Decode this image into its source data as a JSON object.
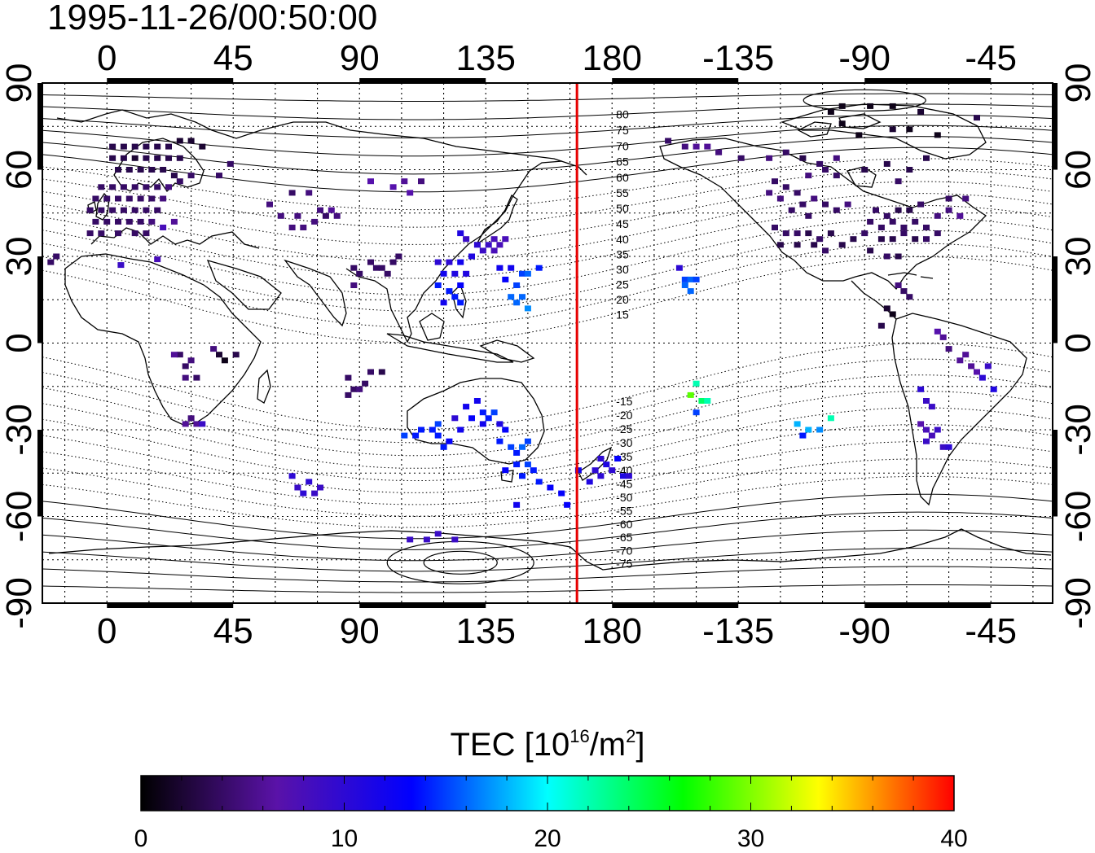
{
  "timestamp": "1995-11-26/00:50:00",
  "map": {
    "lon_ticks_top": [
      "0",
      "45",
      "90",
      "135",
      "180",
      "-135",
      "-90",
      "-45"
    ],
    "lon_ticks_bottom": [
      "0",
      "45",
      "90",
      "135",
      "180",
      "-135",
      "-90",
      "-45"
    ],
    "lat_ticks_left": [
      "90",
      "60",
      "30",
      "0",
      "-30",
      "-60",
      "-90"
    ],
    "lat_ticks_right": [
      "90",
      "60",
      "30",
      "0",
      "-30",
      "-60",
      "-90"
    ],
    "lon_tick_values": [
      0,
      45,
      90,
      135,
      180,
      225,
      270,
      315
    ],
    "lat_tick_values": [
      90,
      60,
      30,
      0,
      -30,
      -60,
      -90
    ],
    "lon_range": [
      -23,
      337
    ],
    "lat_range": [
      -90,
      90
    ],
    "grid": true,
    "red_line_lon": 167.5,
    "red_line_color": "#e60000",
    "mlat_labels_north": [
      "80",
      "75",
      "70",
      "65",
      "60",
      "55",
      "50",
      "45",
      "40",
      "35",
      "30",
      "25",
      "20",
      "15"
    ],
    "mlat_labels_south": [
      "-15",
      "-20",
      "-25",
      "-30",
      "-35",
      "-40",
      "-45",
      "-50",
      "-55",
      "-60",
      "-65",
      "-70",
      "-75"
    ]
  },
  "colorbar": {
    "label_main": "TEC  [10",
    "label_sup1": "16",
    "label_mid": "/m",
    "label_sup2": "2",
    "label_end": "]",
    "ticks": [
      "0",
      "10",
      "20",
      "30",
      "40"
    ],
    "tick_values": [
      0,
      10,
      20,
      30,
      40
    ],
    "min": 0,
    "max": 40,
    "colors": [
      "#000000",
      "#5a12a8",
      "#0000ff",
      "#00ffff",
      "#00ff00",
      "#ffff00",
      "#ff0000"
    ]
  },
  "tec_points": [
    [
      2,
      68,
      3
    ],
    [
      6,
      68,
      3
    ],
    [
      10,
      68,
      3
    ],
    [
      14,
      68,
      3
    ],
    [
      18,
      68,
      3
    ],
    [
      22,
      68,
      3
    ],
    [
      26,
      70,
      2
    ],
    [
      30,
      70,
      2
    ],
    [
      34,
      68,
      2
    ],
    [
      2,
      64,
      3
    ],
    [
      6,
      64,
      3
    ],
    [
      10,
      64,
      2
    ],
    [
      14,
      64,
      3
    ],
    [
      18,
      64,
      3
    ],
    [
      22,
      64,
      3
    ],
    [
      26,
      64,
      3
    ],
    [
      4,
      60,
      3
    ],
    [
      8,
      60,
      3
    ],
    [
      12,
      60,
      3
    ],
    [
      16,
      60,
      3
    ],
    [
      20,
      60,
      3
    ],
    [
      24,
      58,
      3
    ],
    [
      30,
      58,
      4
    ],
    [
      40,
      58,
      4
    ],
    [
      44,
      62,
      4
    ],
    [
      -2,
      54,
      4
    ],
    [
      2,
      54,
      4
    ],
    [
      6,
      54,
      4
    ],
    [
      10,
      54,
      4
    ],
    [
      14,
      54,
      4
    ],
    [
      18,
      54,
      4
    ],
    [
      22,
      54,
      5
    ],
    [
      26,
      56,
      4
    ],
    [
      -4,
      50,
      4
    ],
    [
      0,
      50,
      4
    ],
    [
      4,
      50,
      4
    ],
    [
      8,
      50,
      4
    ],
    [
      12,
      50,
      4
    ],
    [
      16,
      50,
      4
    ],
    [
      20,
      50,
      5
    ],
    [
      -6,
      46,
      4
    ],
    [
      -2,
      46,
      4
    ],
    [
      2,
      46,
      4
    ],
    [
      6,
      46,
      4
    ],
    [
      10,
      46,
      4
    ],
    [
      14,
      46,
      4
    ],
    [
      18,
      46,
      4
    ],
    [
      -4,
      42,
      4
    ],
    [
      0,
      42,
      4
    ],
    [
      4,
      42,
      4
    ],
    [
      8,
      42,
      4
    ],
    [
      12,
      42,
      4
    ],
    [
      16,
      42,
      5
    ],
    [
      20,
      40,
      8
    ],
    [
      24,
      42,
      6
    ],
    [
      -6,
      38,
      4
    ],
    [
      -2,
      38,
      4
    ],
    [
      4,
      38,
      4
    ],
    [
      10,
      38,
      4
    ],
    [
      14,
      38,
      4
    ],
    [
      -20,
      28,
      4
    ],
    [
      -18,
      30,
      4
    ],
    [
      5,
      27,
      9
    ],
    [
      18,
      29,
      8
    ],
    [
      58,
      48,
      5
    ],
    [
      62,
      44,
      5
    ],
    [
      66,
      40,
      5
    ],
    [
      68,
      44,
      5
    ],
    [
      70,
      40,
      5
    ],
    [
      74,
      42,
      5
    ],
    [
      76,
      46,
      5
    ],
    [
      72,
      52,
      5
    ],
    [
      66,
      52,
      4
    ],
    [
      78,
      44,
      4
    ],
    [
      80,
      46,
      6
    ],
    [
      82,
      44,
      5
    ],
    [
      88,
      26,
      4
    ],
    [
      90,
      24,
      4
    ],
    [
      94,
      28,
      4
    ],
    [
      96,
      26,
      4
    ],
    [
      98,
      26,
      4
    ],
    [
      102,
      28,
      4
    ],
    [
      104,
      30,
      4
    ],
    [
      88,
      20,
      5
    ],
    [
      100,
      24,
      4
    ],
    [
      94,
      56,
      7
    ],
    [
      102,
      54,
      7
    ],
    [
      106,
      56,
      6
    ],
    [
      112,
      56,
      5
    ],
    [
      108,
      52,
      7
    ],
    [
      118,
      28,
      10
    ],
    [
      122,
      28,
      10
    ],
    [
      126,
      28,
      12
    ],
    [
      120,
      24,
      12
    ],
    [
      124,
      24,
      11
    ],
    [
      128,
      24,
      11
    ],
    [
      118,
      20,
      14
    ],
    [
      122,
      18,
      14
    ],
    [
      126,
      20,
      13
    ],
    [
      124,
      16,
      14
    ],
    [
      126,
      14,
      14
    ],
    [
      120,
      14,
      12
    ],
    [
      136,
      34,
      9
    ],
    [
      138,
      36,
      8
    ],
    [
      140,
      34,
      8
    ],
    [
      142,
      36,
      8
    ],
    [
      134,
      32,
      9
    ],
    [
      132,
      34,
      10
    ],
    [
      138,
      32,
      8
    ],
    [
      128,
      36,
      9
    ],
    [
      126,
      38,
      11
    ],
    [
      130,
      30,
      11
    ],
    [
      140,
      26,
      12
    ],
    [
      144,
      26,
      12
    ],
    [
      148,
      24,
      15
    ],
    [
      150,
      24,
      16
    ],
    [
      154,
      26,
      14
    ],
    [
      142,
      22,
      13
    ],
    [
      146,
      20,
      15
    ],
    [
      148,
      16,
      16
    ],
    [
      146,
      14,
      16
    ],
    [
      150,
      12,
      17
    ],
    [
      144,
      16,
      16
    ],
    [
      204,
      26,
      10
    ],
    [
      206,
      22,
      15
    ],
    [
      208,
      22,
      16
    ],
    [
      210,
      22,
      15
    ],
    [
      206,
      20,
      16
    ],
    [
      208,
      18,
      16
    ],
    [
      26,
      -4,
      4
    ],
    [
      28,
      -8,
      4
    ],
    [
      30,
      -6,
      5
    ],
    [
      38,
      -2,
      5
    ],
    [
      40,
      -4,
      2
    ],
    [
      42,
      -6,
      1
    ],
    [
      46,
      -4,
      3
    ],
    [
      32,
      -12,
      4
    ],
    [
      28,
      -12,
      5
    ],
    [
      24,
      -4,
      6
    ],
    [
      30,
      -26,
      5
    ],
    [
      28,
      -28,
      6
    ],
    [
      32,
      -28,
      6
    ],
    [
      34,
      -28,
      9
    ],
    [
      86,
      -12,
      4
    ],
    [
      88,
      -16,
      4
    ],
    [
      90,
      -16,
      5
    ],
    [
      92,
      -14,
      4
    ],
    [
      94,
      -10,
      4
    ],
    [
      98,
      -10,
      3
    ],
    [
      86,
      -18,
      4
    ],
    [
      106,
      -32,
      15
    ],
    [
      110,
      -32,
      14
    ],
    [
      112,
      -30,
      14
    ],
    [
      116,
      -30,
      14
    ],
    [
      118,
      -32,
      14
    ],
    [
      118,
      -28,
      15
    ],
    [
      122,
      -34,
      13
    ],
    [
      120,
      -36,
      14
    ],
    [
      124,
      -26,
      10
    ],
    [
      128,
      -22,
      12
    ],
    [
      132,
      -20,
      12
    ],
    [
      134,
      -24,
      14
    ],
    [
      136,
      -26,
      14
    ],
    [
      138,
      -24,
      15
    ],
    [
      134,
      -28,
      12
    ],
    [
      130,
      -26,
      13
    ],
    [
      126,
      -30,
      12
    ],
    [
      140,
      -28,
      11
    ],
    [
      142,
      -30,
      13
    ],
    [
      140,
      -34,
      14
    ],
    [
      144,
      -36,
      15
    ],
    [
      146,
      -38,
      14
    ],
    [
      148,
      -36,
      16
    ],
    [
      150,
      -34,
      15
    ],
    [
      146,
      -42,
      14
    ],
    [
      150,
      -42,
      15
    ],
    [
      142,
      -44,
      13
    ],
    [
      148,
      -46,
      14
    ],
    [
      152,
      -44,
      14
    ],
    [
      154,
      -48,
      14
    ],
    [
      158,
      -50,
      13
    ],
    [
      162,
      -52,
      13
    ],
    [
      164,
      -56,
      13
    ],
    [
      146,
      -56,
      12
    ],
    [
      168,
      -44,
      12
    ],
    [
      172,
      -48,
      11
    ],
    [
      174,
      -44,
      10
    ],
    [
      176,
      -40,
      10
    ],
    [
      176,
      -46,
      10
    ],
    [
      178,
      -42,
      11
    ],
    [
      180,
      -44,
      10
    ],
    [
      184,
      -46,
      11
    ],
    [
      182,
      -40,
      13
    ],
    [
      186,
      -46,
      10
    ],
    [
      66,
      -46,
      10
    ],
    [
      68,
      -50,
      9
    ],
    [
      70,
      -52,
      10
    ],
    [
      72,
      -48,
      10
    ],
    [
      74,
      -52,
      9
    ],
    [
      76,
      -50,
      9
    ],
    [
      108,
      -68,
      9
    ],
    [
      114,
      -68,
      9
    ],
    [
      118,
      -66,
      9
    ],
    [
      124,
      -68,
      9
    ],
    [
      208,
      -18,
      29
    ],
    [
      212,
      -20,
      24
    ],
    [
      210,
      -14,
      22
    ],
    [
      214,
      -20,
      22
    ],
    [
      210,
      -24,
      15
    ],
    [
      246,
      -28,
      18
    ],
    [
      250,
      -30,
      18
    ],
    [
      254,
      -30,
      17
    ],
    [
      258,
      -26,
      22
    ],
    [
      248,
      -32,
      14
    ],
    [
      290,
      -16,
      10
    ],
    [
      292,
      -20,
      9
    ],
    [
      294,
      -22,
      9
    ],
    [
      290,
      -28,
      7
    ],
    [
      292,
      -30,
      8
    ],
    [
      294,
      -32,
      8
    ],
    [
      292,
      -34,
      9
    ],
    [
      298,
      -36,
      9
    ],
    [
      296,
      -30,
      9
    ],
    [
      300,
      -36,
      10
    ],
    [
      300,
      -2,
      5
    ],
    [
      304,
      -6,
      6
    ],
    [
      308,
      -8,
      6
    ],
    [
      310,
      -10,
      7
    ],
    [
      314,
      -8,
      9
    ],
    [
      312,
      -12,
      10
    ],
    [
      316,
      -16,
      11
    ],
    [
      306,
      -4,
      6
    ],
    [
      298,
      2,
      6
    ],
    [
      296,
      4,
      7
    ],
    [
      270,
      60,
      3
    ],
    [
      278,
      62,
      3
    ],
    [
      286,
      60,
      3
    ],
    [
      292,
      64,
      3
    ],
    [
      282,
      56,
      4
    ],
    [
      260,
      58,
      4
    ],
    [
      256,
      60,
      4
    ],
    [
      250,
      58,
      5
    ],
    [
      238,
      56,
      4
    ],
    [
      242,
      54,
      4
    ],
    [
      246,
      52,
      4
    ],
    [
      248,
      48,
      4
    ],
    [
      252,
      50,
      5
    ],
    [
      256,
      48,
      4
    ],
    [
      260,
      46,
      4
    ],
    [
      264,
      48,
      5
    ],
    [
      236,
      52,
      5
    ],
    [
      240,
      50,
      5
    ],
    [
      244,
      46,
      4
    ],
    [
      250,
      44,
      4
    ],
    [
      238,
      40,
      4
    ],
    [
      242,
      38,
      4
    ],
    [
      246,
      38,
      4
    ],
    [
      250,
      38,
      3
    ],
    [
      254,
      36,
      4
    ],
    [
      258,
      38,
      3
    ],
    [
      262,
      34,
      3
    ],
    [
      266,
      36,
      3
    ],
    [
      270,
      38,
      4
    ],
    [
      240,
      34,
      3
    ],
    [
      246,
      34,
      3
    ],
    [
      252,
      34,
      3
    ],
    [
      256,
      32,
      4
    ],
    [
      272,
      42,
      4
    ],
    [
      276,
      40,
      4
    ],
    [
      280,
      42,
      4
    ],
    [
      284,
      40,
      4
    ],
    [
      288,
      42,
      4
    ],
    [
      292,
      40,
      4
    ],
    [
      274,
      46,
      4
    ],
    [
      278,
      44,
      4
    ],
    [
      282,
      46,
      3
    ],
    [
      286,
      46,
      3
    ],
    [
      290,
      48,
      4
    ],
    [
      276,
      36,
      3
    ],
    [
      280,
      36,
      3
    ],
    [
      284,
      38,
      4
    ],
    [
      288,
      36,
      3
    ],
    [
      272,
      32,
      3
    ],
    [
      278,
      30,
      4
    ],
    [
      282,
      30,
      3
    ],
    [
      292,
      36,
      4
    ],
    [
      296,
      38,
      4
    ],
    [
      296,
      44,
      5
    ],
    [
      300,
      46,
      5
    ],
    [
      304,
      44,
      6
    ],
    [
      300,
      50,
      4
    ],
    [
      306,
      50,
      5
    ],
    [
      282,
      20,
      5
    ],
    [
      284,
      18,
      4
    ],
    [
      286,
      16,
      4
    ],
    [
      278,
      12,
      2
    ],
    [
      280,
      10,
      1
    ],
    [
      276,
      6,
      3
    ],
    [
      200,
      70,
      4
    ],
    [
      206,
      68,
      5
    ],
    [
      210,
      68,
      6
    ],
    [
      214,
      68,
      6
    ],
    [
      218,
      66,
      5
    ],
    [
      226,
      64,
      4
    ],
    [
      236,
      64,
      5
    ],
    [
      242,
      66,
      4
    ],
    [
      248,
      64,
      3
    ],
    [
      254,
      62,
      4
    ],
    [
      260,
      64,
      5
    ],
    [
      258,
      80,
      1
    ],
    [
      262,
      82,
      1
    ],
    [
      272,
      82,
      1
    ],
    [
      280,
      82,
      1
    ],
    [
      290,
      80,
      2
    ],
    [
      262,
      76,
      1
    ],
    [
      268,
      72,
      1
    ],
    [
      280,
      74,
      2
    ],
    [
      286,
      74,
      1
    ],
    [
      296,
      72,
      1
    ],
    [
      310,
      78,
      3
    ]
  ]
}
